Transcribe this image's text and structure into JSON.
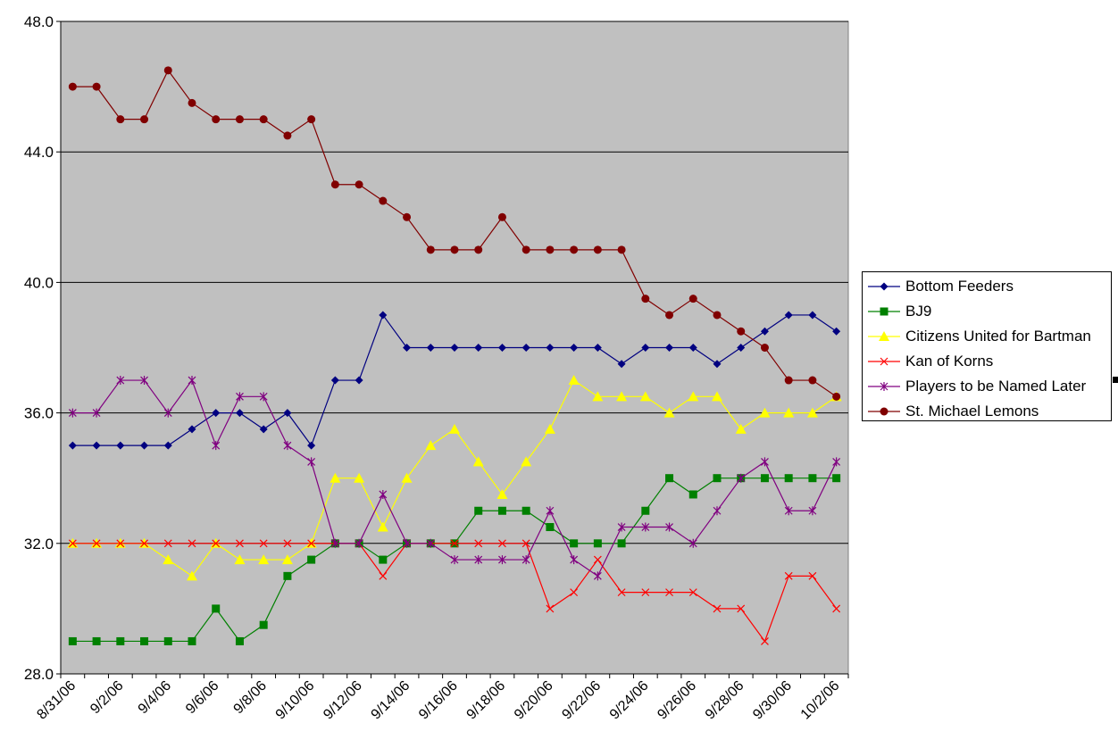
{
  "chart_data": {
    "type": "line",
    "title": "",
    "xlabel": "",
    "ylabel": "",
    "ylim": [
      28,
      48
    ],
    "yticks": [
      "28.0",
      "32.0",
      "36.0",
      "40.0",
      "44.0",
      "48.0"
    ],
    "grid": true,
    "legend_position": "right",
    "x": [
      "8/31/06",
      "9/1/06",
      "9/2/06",
      "9/3/06",
      "9/4/06",
      "9/5/06",
      "9/6/06",
      "9/7/06",
      "9/8/06",
      "9/9/06",
      "9/10/06",
      "9/11/06",
      "9/12/06",
      "9/13/06",
      "9/14/06",
      "9/15/06",
      "9/16/06",
      "9/17/06",
      "9/18/06",
      "9/19/06",
      "9/20/06",
      "9/21/06",
      "9/22/06",
      "9/23/06",
      "9/24/06",
      "9/25/06",
      "9/26/06",
      "9/27/06",
      "9/28/06",
      "9/29/06",
      "9/30/06",
      "10/1/06",
      "10/2/06"
    ],
    "xtick_labels": [
      "8/31/06",
      "9/2/06",
      "9/4/06",
      "9/6/06",
      "9/8/06",
      "9/10/06",
      "9/12/06",
      "9/14/06",
      "9/16/06",
      "9/18/06",
      "9/20/06",
      "9/22/06",
      "9/24/06",
      "9/26/06",
      "9/28/06",
      "9/30/06",
      "10/2/06"
    ],
    "series": [
      {
        "name": "Bottom Feeders",
        "color": "#000080",
        "marker": "diamond",
        "values": [
          35,
          35,
          35,
          35,
          35,
          35.5,
          36,
          36,
          35.5,
          36,
          35,
          37,
          37,
          39,
          38,
          38,
          38,
          38,
          38,
          38,
          38,
          38,
          38,
          37.5,
          38,
          38,
          38,
          37.5,
          38,
          38.5,
          39,
          39,
          38.5
        ]
      },
      {
        "name": "BJ9",
        "color": "#008000",
        "marker": "square",
        "values": [
          29,
          29,
          29,
          29,
          29,
          29,
          30,
          29,
          29.5,
          31,
          31.5,
          32,
          32,
          31.5,
          32,
          32,
          32,
          33,
          33,
          33,
          32.5,
          32,
          32,
          32,
          33,
          34,
          33.5,
          34,
          34,
          34,
          34,
          34,
          34
        ]
      },
      {
        "name": "Citizens United for Bartman",
        "color": "#FFFF00",
        "marker": "triangle",
        "values": [
          32,
          32,
          32,
          32,
          31.5,
          31,
          32,
          31.5,
          31.5,
          31.5,
          32,
          34,
          34,
          32.5,
          34,
          35,
          35.5,
          34.5,
          33.5,
          34.5,
          35.5,
          37,
          36.5,
          36.5,
          36.5,
          36,
          36.5,
          36.5,
          35.5,
          36,
          36,
          36,
          36.5
        ]
      },
      {
        "name": "Kan of Korns",
        "color": "#FF0000",
        "marker": "x",
        "values": [
          32,
          32,
          32,
          32,
          32,
          32,
          32,
          32,
          32,
          32,
          32,
          32,
          32,
          31,
          32,
          32,
          32,
          32,
          32,
          32,
          30,
          30.5,
          31.5,
          30.5,
          30.5,
          30.5,
          30.5,
          30,
          30,
          29,
          31,
          31,
          30
        ]
      },
      {
        "name": "Players to be Named Later",
        "color": "#800080",
        "marker": "star",
        "values": [
          36,
          36,
          37,
          37,
          36,
          37,
          35,
          36.5,
          36.5,
          35,
          34.5,
          32,
          32,
          33.5,
          32,
          32,
          31.5,
          31.5,
          31.5,
          31.5,
          33,
          31.5,
          31,
          32.5,
          32.5,
          32.5,
          32,
          33,
          34,
          34.5,
          33,
          33,
          34.5
        ]
      },
      {
        "name": "St. Michael Lemons",
        "color": "#800000",
        "marker": "circle",
        "values": [
          46,
          46,
          45,
          45,
          46.5,
          45.5,
          45,
          45,
          45,
          44.5,
          45,
          43,
          43,
          42.5,
          42,
          41,
          41,
          41,
          42,
          41,
          41,
          41,
          41,
          41,
          39.5,
          39,
          39.5,
          39,
          38.5,
          38,
          37,
          37,
          36.5
        ]
      }
    ]
  }
}
